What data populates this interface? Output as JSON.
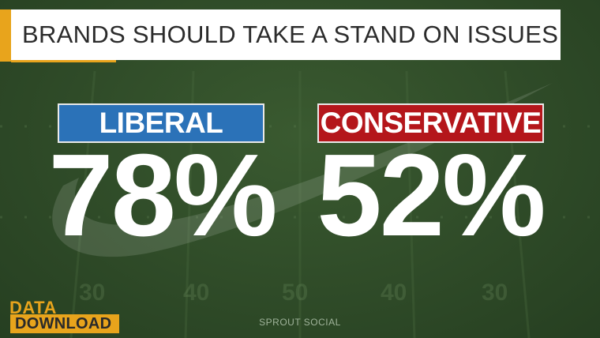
{
  "title": "BRANDS SHOULD TAKE A STAND ON ISSUES",
  "groups": [
    {
      "label": "LIBERAL",
      "value": "78%",
      "color": "#2b72b8"
    },
    {
      "label": "CONSERVATIVE",
      "value": "52%",
      "color": "#b4161b"
    }
  ],
  "source": "SPROUT SOCIAL",
  "logo": {
    "line1": "DATA_",
    "line2": "DOWNLOAD",
    "accent_color": "#e8a41c"
  },
  "field_markings": [
    "30",
    "40",
    "50",
    "40",
    "30"
  ]
}
